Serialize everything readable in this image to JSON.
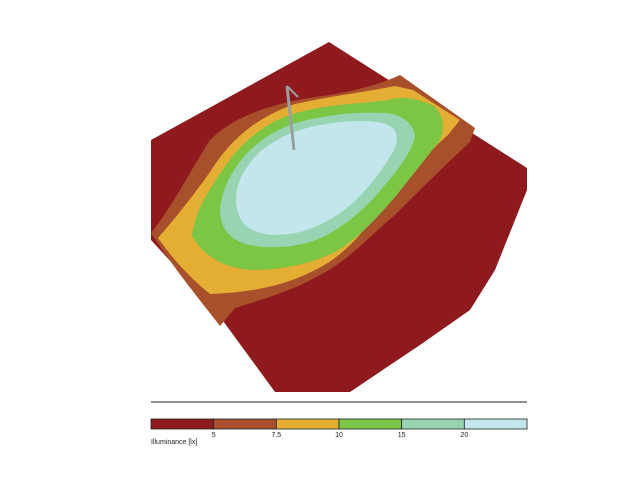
{
  "chart_data": {
    "type": "heatmap",
    "title": "",
    "colorbar": {
      "label": "Illuminance [lx]",
      "bins": [
        {
          "from": null,
          "to": 5,
          "color": "#8f1a1e"
        },
        {
          "from": 5,
          "to": 7.5,
          "color": "#a84f2b"
        },
        {
          "from": 7.5,
          "to": 10,
          "color": "#e4ae34"
        },
        {
          "from": 10,
          "to": 15,
          "color": "#7cc545"
        },
        {
          "from": 15,
          "to": 20,
          "color": "#98d3b2"
        },
        {
          "from": 20,
          "to": null,
          "color": "#c2e6ec"
        }
      ],
      "tick_labels": [
        "5",
        "7.5",
        "10",
        "15",
        "20"
      ]
    },
    "levels_shown": [
      5,
      7.5,
      10,
      15,
      20
    ],
    "luminaire": "pole",
    "colors": {
      "below_5": "#8f1a1e",
      "5_to_7.5": "#a84f2b",
      "7.5_to_10": "#e4ae34",
      "10_to_15": "#7cc545",
      "15_to_20": "#98d3b2",
      "above_20": "#c2e6ec"
    }
  }
}
